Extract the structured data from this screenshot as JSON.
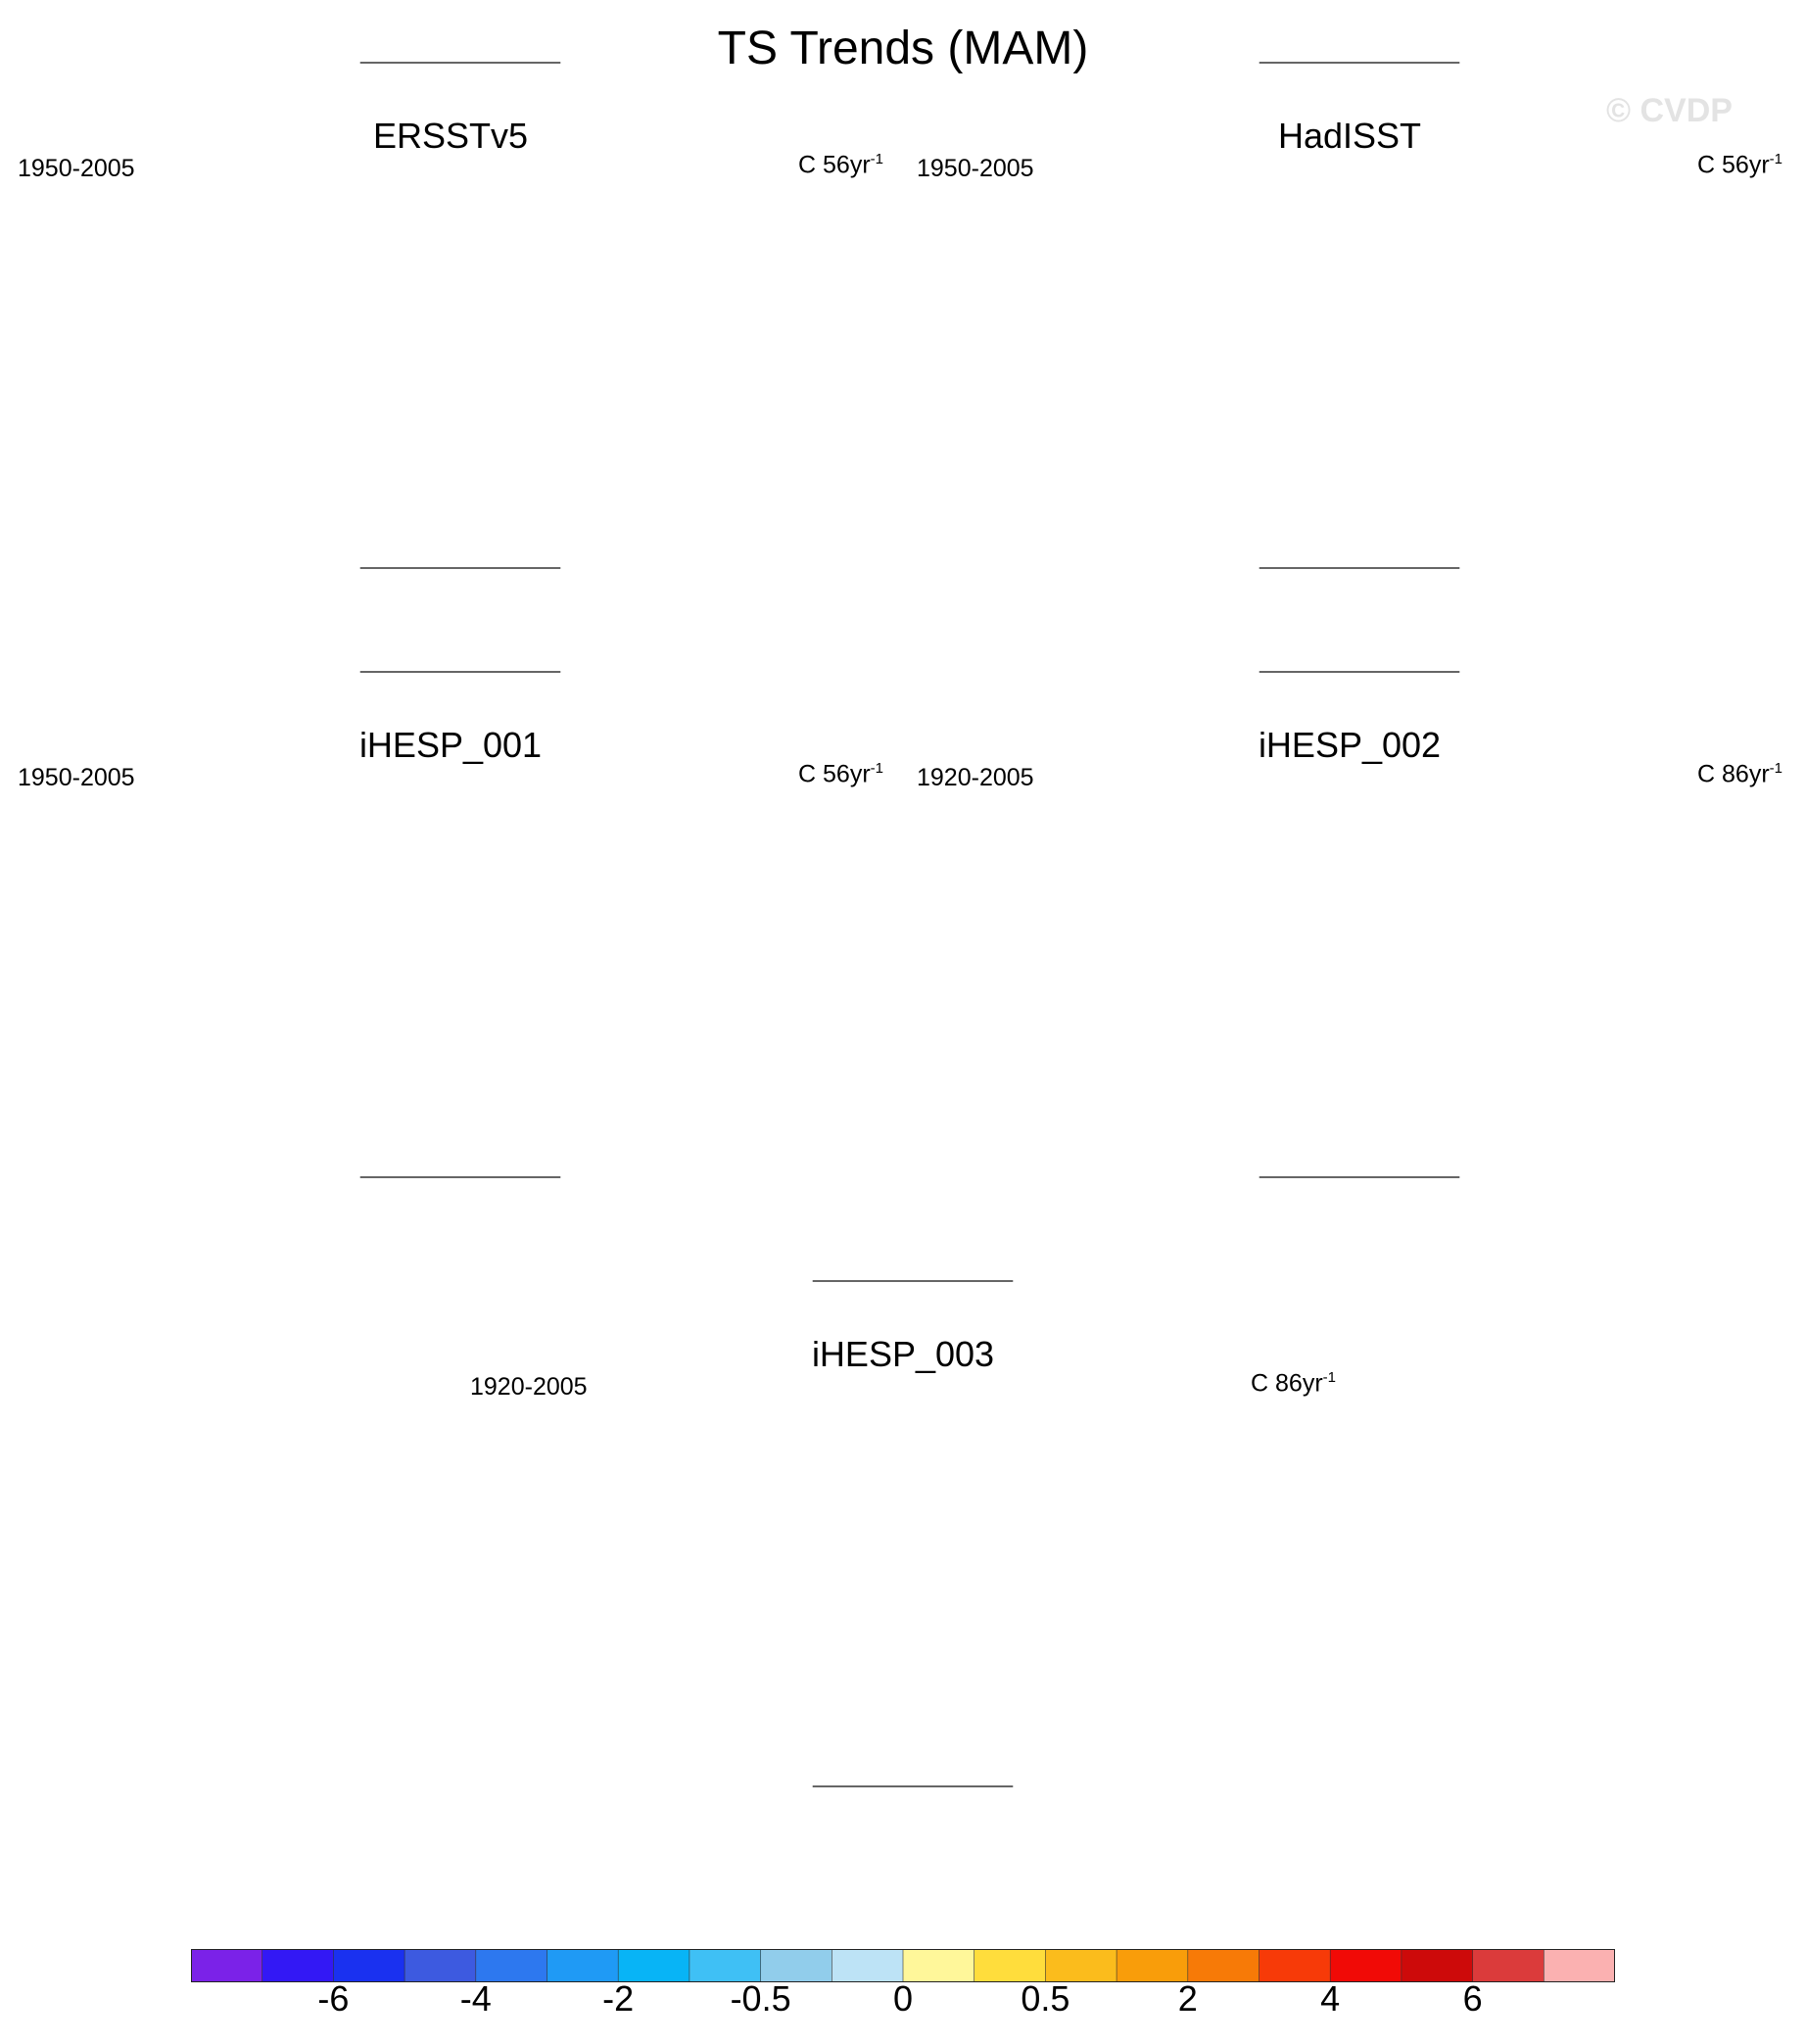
{
  "figure": {
    "title": "TS Trends (MAM)",
    "watermark": "© CVDP"
  },
  "panels": [
    {
      "name": "ERSSTv5",
      "period": "1950-2005",
      "units_prefix": "C 56yr",
      "units_exp": "-1",
      "pattern": "ersst"
    },
    {
      "name": "HadISST",
      "period": "1950-2005",
      "units_prefix": "C 56yr",
      "units_exp": "-1",
      "pattern": "hadisst"
    },
    {
      "name": "iHESP_001",
      "period": "1950-2005",
      "units_prefix": "C 56yr",
      "units_exp": "-1",
      "pattern": "ihesp1"
    },
    {
      "name": "iHESP_002",
      "period": "1920-2005",
      "units_prefix": "C 86yr",
      "units_exp": "-1",
      "pattern": "ihesp2"
    },
    {
      "name": "iHESP_003",
      "period": "1920-2005",
      "units_prefix": "C 86yr",
      "units_exp": "-1",
      "pattern": "ihesp3"
    }
  ],
  "colorbar": {
    "colors": [
      "#7b22e8",
      "#3318f5",
      "#1a31f0",
      "#3d5ae0",
      "#2d78ef",
      "#1f9af5",
      "#08b4f6",
      "#3fc0f5",
      "#91cdeb",
      "#bde3f6",
      "#fff79a",
      "#ffdd3c",
      "#fbbc1c",
      "#f99d0a",
      "#f77a07",
      "#f73a08",
      "#f10a06",
      "#cd0a0a",
      "#db3b3b",
      "#fbb1b1"
    ],
    "labels": [
      {
        "text": "-6",
        "boundary": 2
      },
      {
        "text": "-4",
        "boundary": 4
      },
      {
        "text": "-2",
        "boundary": 6
      },
      {
        "text": "-0.5",
        "boundary": 8
      },
      {
        "text": "0",
        "boundary": 10
      },
      {
        "text": "0.5",
        "boundary": 12
      },
      {
        "text": "2",
        "boundary": 14
      },
      {
        "text": "4",
        "boundary": 16
      },
      {
        "text": "6",
        "boundary": 18
      }
    ]
  }
}
